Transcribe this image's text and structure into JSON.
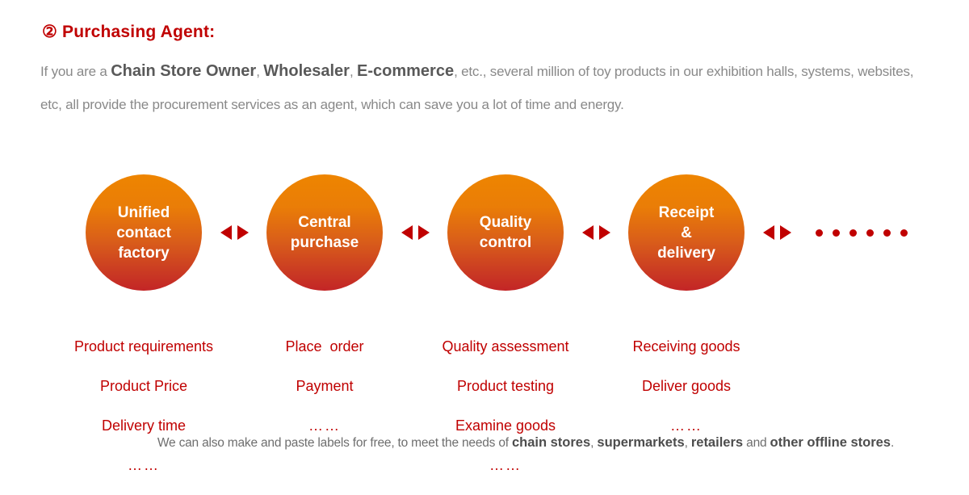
{
  "heading": {
    "number": "②",
    "title": "Purchasing Agent:"
  },
  "intro": {
    "segments": [
      {
        "text": "If you are a ",
        "bold": false
      },
      {
        "text": "Chain Store Owner",
        "bold": true
      },
      {
        "text": ", ",
        "bold": false
      },
      {
        "text": "Wholesaler",
        "bold": true
      },
      {
        "text": ", ",
        "bold": false
      },
      {
        "text": "E-commerce",
        "bold": true
      },
      {
        "text": ", etc., several million of toy products in our exhibition halls, systems, websites, etc, all provide the procurement services as an agent, which can save you a lot of time and energy.",
        "bold": false
      }
    ]
  },
  "process": {
    "stages": [
      {
        "label": "Unified\ncontact\nfactory",
        "items": [
          "Product requirements",
          "Product Price",
          "Delivery time",
          "……"
        ]
      },
      {
        "label": "Central\npurchase",
        "items": [
          "Place  order",
          "Payment",
          "……"
        ]
      },
      {
        "label": "Quality\ncontrol",
        "items": [
          "Quality assessment",
          "Product testing",
          "Examine goods",
          "……"
        ]
      },
      {
        "label": "Receipt\n&\ndelivery",
        "items": [
          "Receiving goods",
          "Deliver goods",
          "……"
        ]
      }
    ],
    "trailing_dots_count": 6
  },
  "footer": {
    "segments": [
      {
        "text": "We can also make and paste labels for free, to meet the needs of ",
        "bold": false
      },
      {
        "text": "chain stores",
        "bold": true
      },
      {
        "text": ", ",
        "bold": false
      },
      {
        "text": "supermarkets",
        "bold": true
      },
      {
        "text": ", ",
        "bold": false
      },
      {
        "text": "retailers",
        "bold": true
      },
      {
        "text": " and ",
        "bold": false
      },
      {
        "text": "other offline stores",
        "bold": true
      },
      {
        "text": ".",
        "bold": false
      }
    ]
  },
  "colors": {
    "accent_red": "#c00000",
    "circle_gradient_top": "#ee8500",
    "circle_gradient_bottom": "#c32526",
    "body_text_gray": "#898989",
    "body_bold_gray": "#595959"
  }
}
